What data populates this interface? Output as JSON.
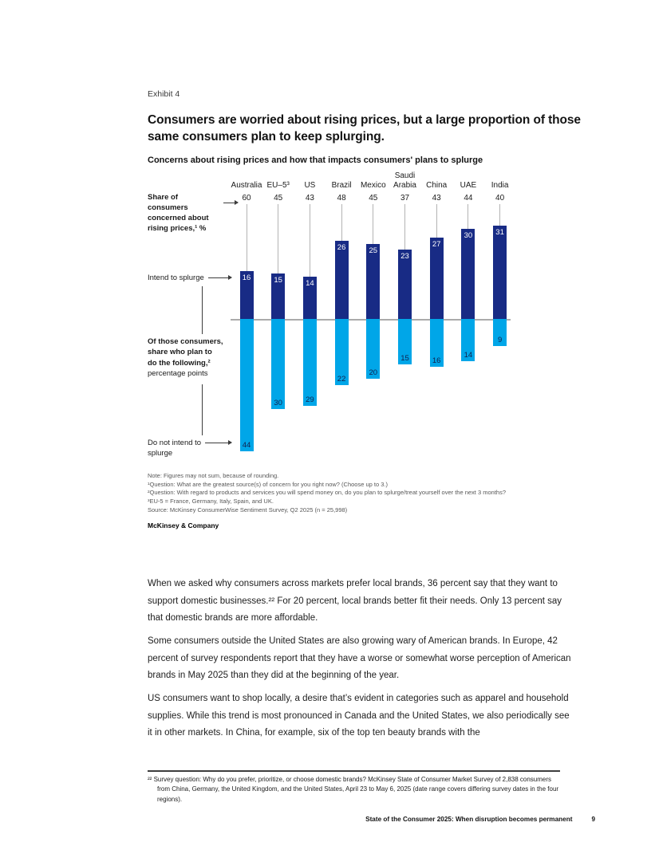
{
  "page": {
    "exhibit_label": "Exhibit 4",
    "title": "Consumers are worried about rising prices, but a large proportion of those same consumers plan to keep splurging.",
    "footer_title": "State of the Consumer 2025: When disruption becomes permanent",
    "page_number": "9"
  },
  "chart_data": {
    "type": "bar",
    "title": "Concerns about rising prices and how that impacts consumers' plans to splurge",
    "categories": [
      "Australia",
      "EU–5³",
      "US",
      "Brazil",
      "Mexico",
      "Saudi Arabia",
      "China",
      "UAE",
      "India"
    ],
    "share_concerned_values": [
      60,
      45,
      43,
      48,
      45,
      37,
      43,
      44,
      40
    ],
    "series": [
      {
        "name": "Intend to splurge",
        "values": [
          16,
          15,
          14,
          26,
          25,
          23,
          27,
          30,
          31
        ],
        "color": "#182b85"
      },
      {
        "name": "Do not intend to splurge",
        "values": [
          44,
          30,
          29,
          22,
          20,
          15,
          16,
          14,
          9
        ],
        "color": "#00a6e8"
      }
    ],
    "baseline": 0,
    "grid": false,
    "legend_position": "left-annotations",
    "colors": {
      "dark_bar": "#182b85",
      "light_bar": "#00a6e8",
      "connector_gray": "#b3b3b3",
      "baseline_gray": "#ababab"
    }
  },
  "chart_labels": {
    "share_line1": "Share of consumers",
    "share_line2": "concerned about",
    "share_line3": "rising prices,¹ %",
    "intend": "Intend to splurge",
    "mid_bold_1": "Of those consumers,",
    "mid_bold_2": "share who plan to",
    "mid_bold_3": "do the following,²",
    "mid_regular": "percentage points",
    "not_intend_1": "Do not intend to",
    "not_intend_2": "splurge"
  },
  "notes": [
    "Note: Figures may not sum, because of rounding.",
    "¹Question: What are the greatest source(s) of concern for you right now? (Choose up to 3.)",
    "²Question: With regard to products and services you will spend money on, do you plan to splurge/treat yourself over the next 3 months?",
    "³EU-5 = France, Germany, Italy, Spain, and UK.",
    "Source: McKinsey ConsumerWise Sentiment Survey, Q2 2025 (n = 25,998)"
  ],
  "brand": "McKinsey & Company",
  "paragraphs": [
    "When we asked why consumers across markets prefer local brands, 36 percent say that they want to support domestic businesses.²² For 20 percent, local brands better fit their needs. Only 13 percent say that domestic brands are more affordable.",
    "Some consumers outside the United States are also growing wary of American brands. In Europe, 42 percent of survey respondents report that they have a worse or somewhat worse perception of American brands in May 2025 than they did at the beginning of the year.",
    "US consumers want to shop locally, a desire that’s evident in categories such as apparel and household supplies. While this trend is most pronounced in Canada and the United States, we also periodically see it in other markets. In China, for example, six of the top ten beauty brands with the"
  ],
  "footnote": {
    "marker": "²²",
    "text": "Survey question: Why do you prefer, prioritize, or choose domestic brands? McKinsey State of Consumer Market Survey of 2,838 consumers from China, Germany, the United Kingdom, and the United States, April 23 to May 6, 2025 (date range covers differing survey dates in the four regions)."
  }
}
